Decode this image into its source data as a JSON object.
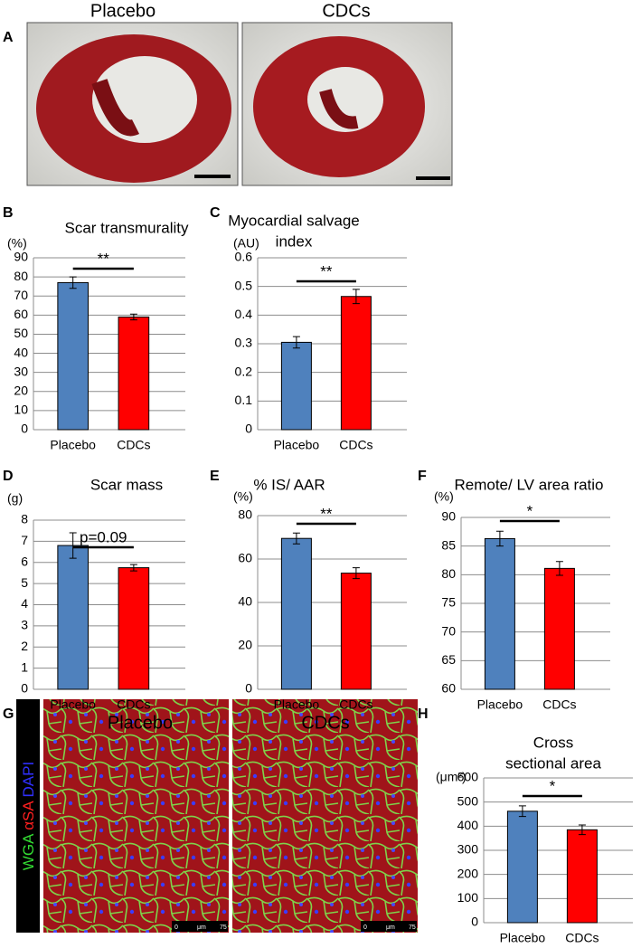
{
  "figure": {
    "panel_a": {
      "label": "A",
      "images": [
        "Placebo",
        "CDCs"
      ]
    },
    "panel_g": {
      "label": "G",
      "images": [
        "Placebo",
        "CDCs"
      ],
      "stain": [
        "WGA",
        "αSA",
        "DAPI"
      ],
      "scale_bar": [
        "0",
        "μm",
        "75"
      ]
    }
  },
  "chart_data": [
    {
      "type": "bar",
      "panel": "B",
      "title": [
        "Scar transmurality"
      ],
      "unit": "(%)",
      "categories": [
        "Placebo",
        "CDCs"
      ],
      "values": [
        77,
        59
      ],
      "errors": [
        3,
        1.5
      ],
      "colors": [
        "#4f81bd",
        "#ff0000"
      ],
      "ylim": [
        0,
        90
      ],
      "yticks": [
        0,
        10,
        20,
        30,
        40,
        50,
        60,
        70,
        80,
        90
      ],
      "grid": true,
      "annotation": "**"
    },
    {
      "type": "bar",
      "panel": "C",
      "title": [
        "Myocardial salvage",
        "index"
      ],
      "unit": "(AU)",
      "categories": [
        "Placebo",
        "CDCs"
      ],
      "values": [
        0.305,
        0.465
      ],
      "errors": [
        0.02,
        0.025
      ],
      "colors": [
        "#4f81bd",
        "#ff0000"
      ],
      "ylim": [
        0,
        0.6
      ],
      "yticks": [
        0,
        0.1,
        0.2,
        0.3,
        0.4,
        0.5,
        0.6
      ],
      "grid": true,
      "annotation": "**"
    },
    {
      "type": "bar",
      "panel": "D",
      "title": [
        "Scar mass"
      ],
      "unit": "(g)",
      "categories": [
        "Placebo",
        "CDCs"
      ],
      "values": [
        6.8,
        5.75
      ],
      "errors": [
        0.6,
        0.15
      ],
      "colors": [
        "#4f81bd",
        "#ff0000"
      ],
      "ylim": [
        0,
        8
      ],
      "yticks": [
        0,
        1,
        2,
        3,
        4,
        5,
        6,
        7,
        8
      ],
      "grid": true,
      "annotation": "p=0.09"
    },
    {
      "type": "bar",
      "panel": "E",
      "title": [
        "% IS/ AAR"
      ],
      "unit": "(%)",
      "categories": [
        "Placebo",
        "CDCs"
      ],
      "values": [
        69.5,
        53.5
      ],
      "errors": [
        2.5,
        2.5
      ],
      "colors": [
        "#4f81bd",
        "#ff0000"
      ],
      "ylim": [
        0,
        80
      ],
      "yticks": [
        0,
        20,
        40,
        60,
        80
      ],
      "grid": true,
      "annotation": "**"
    },
    {
      "type": "bar",
      "panel": "F",
      "title": [
        "Remote/ LV area ratio"
      ],
      "unit": "(%)",
      "categories": [
        "Placebo",
        "CDCs"
      ],
      "values": [
        86.3,
        81.1
      ],
      "errors": [
        1.3,
        1.2
      ],
      "colors": [
        "#4f81bd",
        "#ff0000"
      ],
      "ylim": [
        60,
        90
      ],
      "yticks": [
        60,
        65,
        70,
        75,
        80,
        85,
        90
      ],
      "grid": true,
      "annotation": "*"
    },
    {
      "type": "bar",
      "panel": "H",
      "title": [
        "Cross",
        "sectional area"
      ],
      "unit": "(μm²)",
      "categories": [
        "Placebo",
        "CDCs"
      ],
      "values": [
        462,
        385
      ],
      "errors": [
        22,
        20
      ],
      "colors": [
        "#4f81bd",
        "#ff0000"
      ],
      "ylim": [
        0,
        600
      ],
      "yticks": [
        0,
        100,
        200,
        300,
        400,
        500,
        600
      ],
      "grid": true,
      "annotation": "*"
    }
  ]
}
